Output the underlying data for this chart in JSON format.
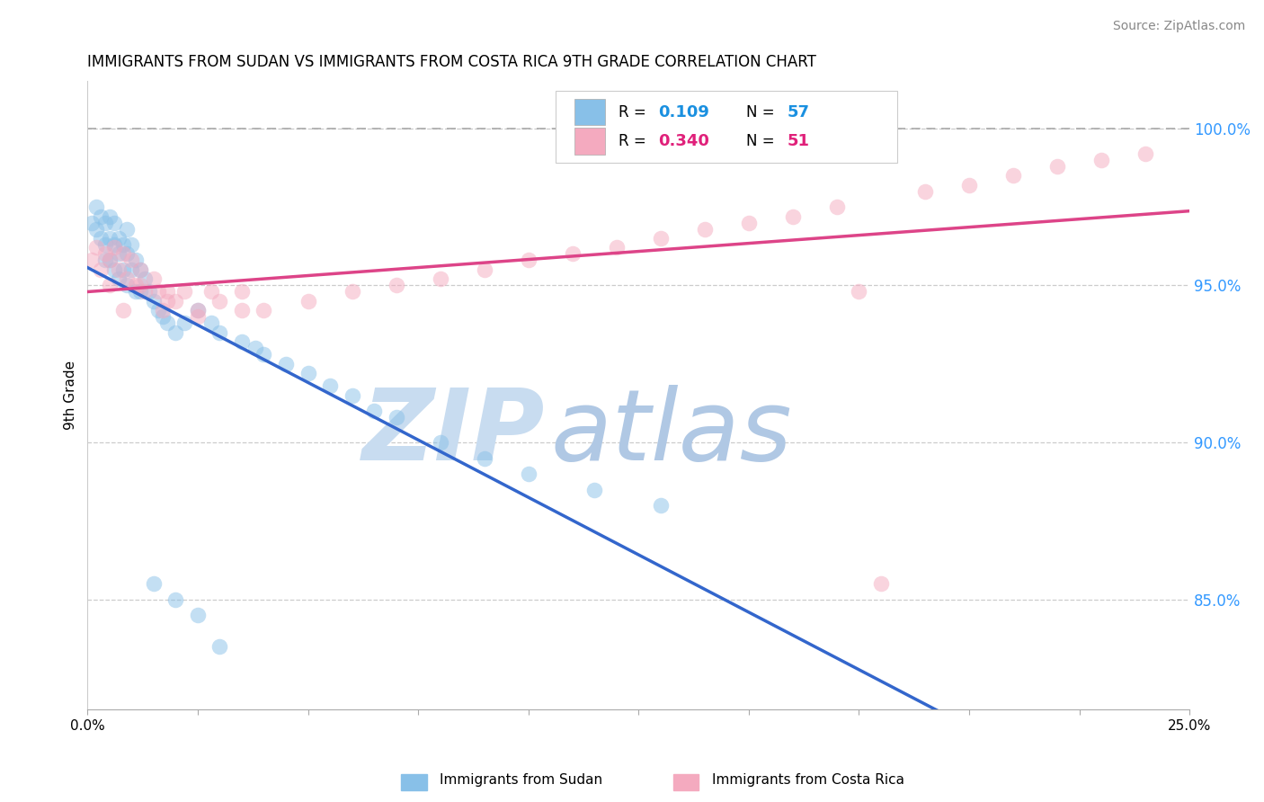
{
  "title": "IMMIGRANTS FROM SUDAN VS IMMIGRANTS FROM COSTA RICA 9TH GRADE CORRELATION CHART",
  "source_text": "Source: ZipAtlas.com",
  "ylabel": "9th Grade",
  "y_tick_labels": [
    "85.0%",
    "90.0%",
    "95.0%",
    "100.0%"
  ],
  "y_tick_values": [
    0.85,
    0.9,
    0.95,
    1.0
  ],
  "xlim": [
    0.0,
    0.25
  ],
  "ylim": [
    0.815,
    1.015
  ],
  "sudan_R": 0.109,
  "sudan_N": 57,
  "costa_rica_R": 0.34,
  "costa_rica_N": 51,
  "sudan_color": "#88C0E8",
  "costa_rica_color": "#F4AABF",
  "sudan_trend_color": "#3366CC",
  "costa_rica_trend_color": "#DD4488",
  "watermark_zip_color": "#C8DCF0",
  "watermark_atlas_color": "#B0C8E4",
  "bottom_legend_sudan": "Immigrants from Sudan",
  "bottom_legend_cr": "Immigrants from Costa Rica",
  "sudan_x": [
    0.001,
    0.002,
    0.002,
    0.003,
    0.003,
    0.004,
    0.004,
    0.004,
    0.005,
    0.005,
    0.005,
    0.006,
    0.006,
    0.006,
    0.007,
    0.007,
    0.007,
    0.008,
    0.008,
    0.009,
    0.009,
    0.009,
    0.01,
    0.01,
    0.011,
    0.011,
    0.012,
    0.012,
    0.013,
    0.014,
    0.015,
    0.016,
    0.017,
    0.018,
    0.02,
    0.022,
    0.025,
    0.028,
    0.03,
    0.035,
    0.038,
    0.04,
    0.045,
    0.05,
    0.055,
    0.06,
    0.065,
    0.07,
    0.08,
    0.09,
    0.1,
    0.115,
    0.13,
    0.015,
    0.02,
    0.025,
    0.03
  ],
  "sudan_y": [
    0.97,
    0.975,
    0.968,
    0.972,
    0.965,
    0.97,
    0.963,
    0.958,
    0.972,
    0.965,
    0.958,
    0.97,
    0.963,
    0.955,
    0.965,
    0.96,
    0.952,
    0.963,
    0.955,
    0.968,
    0.96,
    0.95,
    0.963,
    0.955,
    0.958,
    0.948,
    0.955,
    0.948,
    0.952,
    0.948,
    0.945,
    0.942,
    0.94,
    0.938,
    0.935,
    0.938,
    0.942,
    0.938,
    0.935,
    0.932,
    0.93,
    0.928,
    0.925,
    0.922,
    0.918,
    0.915,
    0.91,
    0.908,
    0.9,
    0.895,
    0.89,
    0.885,
    0.88,
    0.855,
    0.85,
    0.845,
    0.835
  ],
  "costa_rica_x": [
    0.001,
    0.002,
    0.003,
    0.004,
    0.005,
    0.005,
    0.006,
    0.007,
    0.008,
    0.009,
    0.01,
    0.011,
    0.012,
    0.013,
    0.015,
    0.016,
    0.017,
    0.018,
    0.02,
    0.022,
    0.025,
    0.028,
    0.03,
    0.035,
    0.04,
    0.05,
    0.06,
    0.07,
    0.08,
    0.09,
    0.1,
    0.11,
    0.12,
    0.13,
    0.14,
    0.15,
    0.16,
    0.17,
    0.18,
    0.19,
    0.2,
    0.21,
    0.22,
    0.23,
    0.24,
    0.008,
    0.012,
    0.018,
    0.025,
    0.035,
    0.175
  ],
  "costa_rica_y": [
    0.958,
    0.962,
    0.955,
    0.96,
    0.958,
    0.95,
    0.962,
    0.955,
    0.96,
    0.952,
    0.958,
    0.95,
    0.955,
    0.948,
    0.952,
    0.948,
    0.942,
    0.948,
    0.945,
    0.948,
    0.942,
    0.948,
    0.945,
    0.948,
    0.942,
    0.945,
    0.948,
    0.95,
    0.952,
    0.955,
    0.958,
    0.96,
    0.962,
    0.965,
    0.968,
    0.97,
    0.972,
    0.975,
    0.855,
    0.98,
    0.982,
    0.985,
    0.988,
    0.99,
    0.992,
    0.942,
    0.95,
    0.945,
    0.94,
    0.942,
    0.948
  ]
}
